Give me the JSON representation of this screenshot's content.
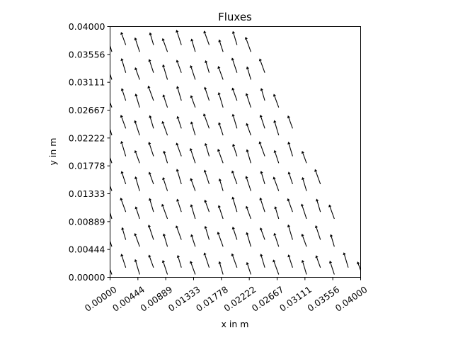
{
  "chart_data": {
    "type": "quiver",
    "title": "Fluxes",
    "xlabel": "x in m",
    "ylabel": "y in m",
    "xlim": [
      0,
      0.04
    ],
    "ylim": [
      0,
      0.04
    ],
    "x_ticks": [
      "0.00000",
      "0.00444",
      "0.00889",
      "0.01333",
      "0.01778",
      "0.02222",
      "0.02667",
      "0.03111",
      "0.03556",
      "0.04000"
    ],
    "y_ticks": [
      "0.00000",
      "0.00444",
      "0.00889",
      "0.01333",
      "0.01778",
      "0.02222",
      "0.02667",
      "0.03111",
      "0.03556",
      "0.04000"
    ],
    "grid": false,
    "arrow_color": "#000000",
    "domain": "triangle bounded by x = 0, y = 0 and the line from (0.0222, 0.0400) to (0.0400, 0.0000)",
    "field": {
      "direction": "predominantly upward (+y) with a slight negative x component",
      "arrow_spacing_x": 0.00222,
      "arrow_spacing_y": 0.00444
    }
  }
}
